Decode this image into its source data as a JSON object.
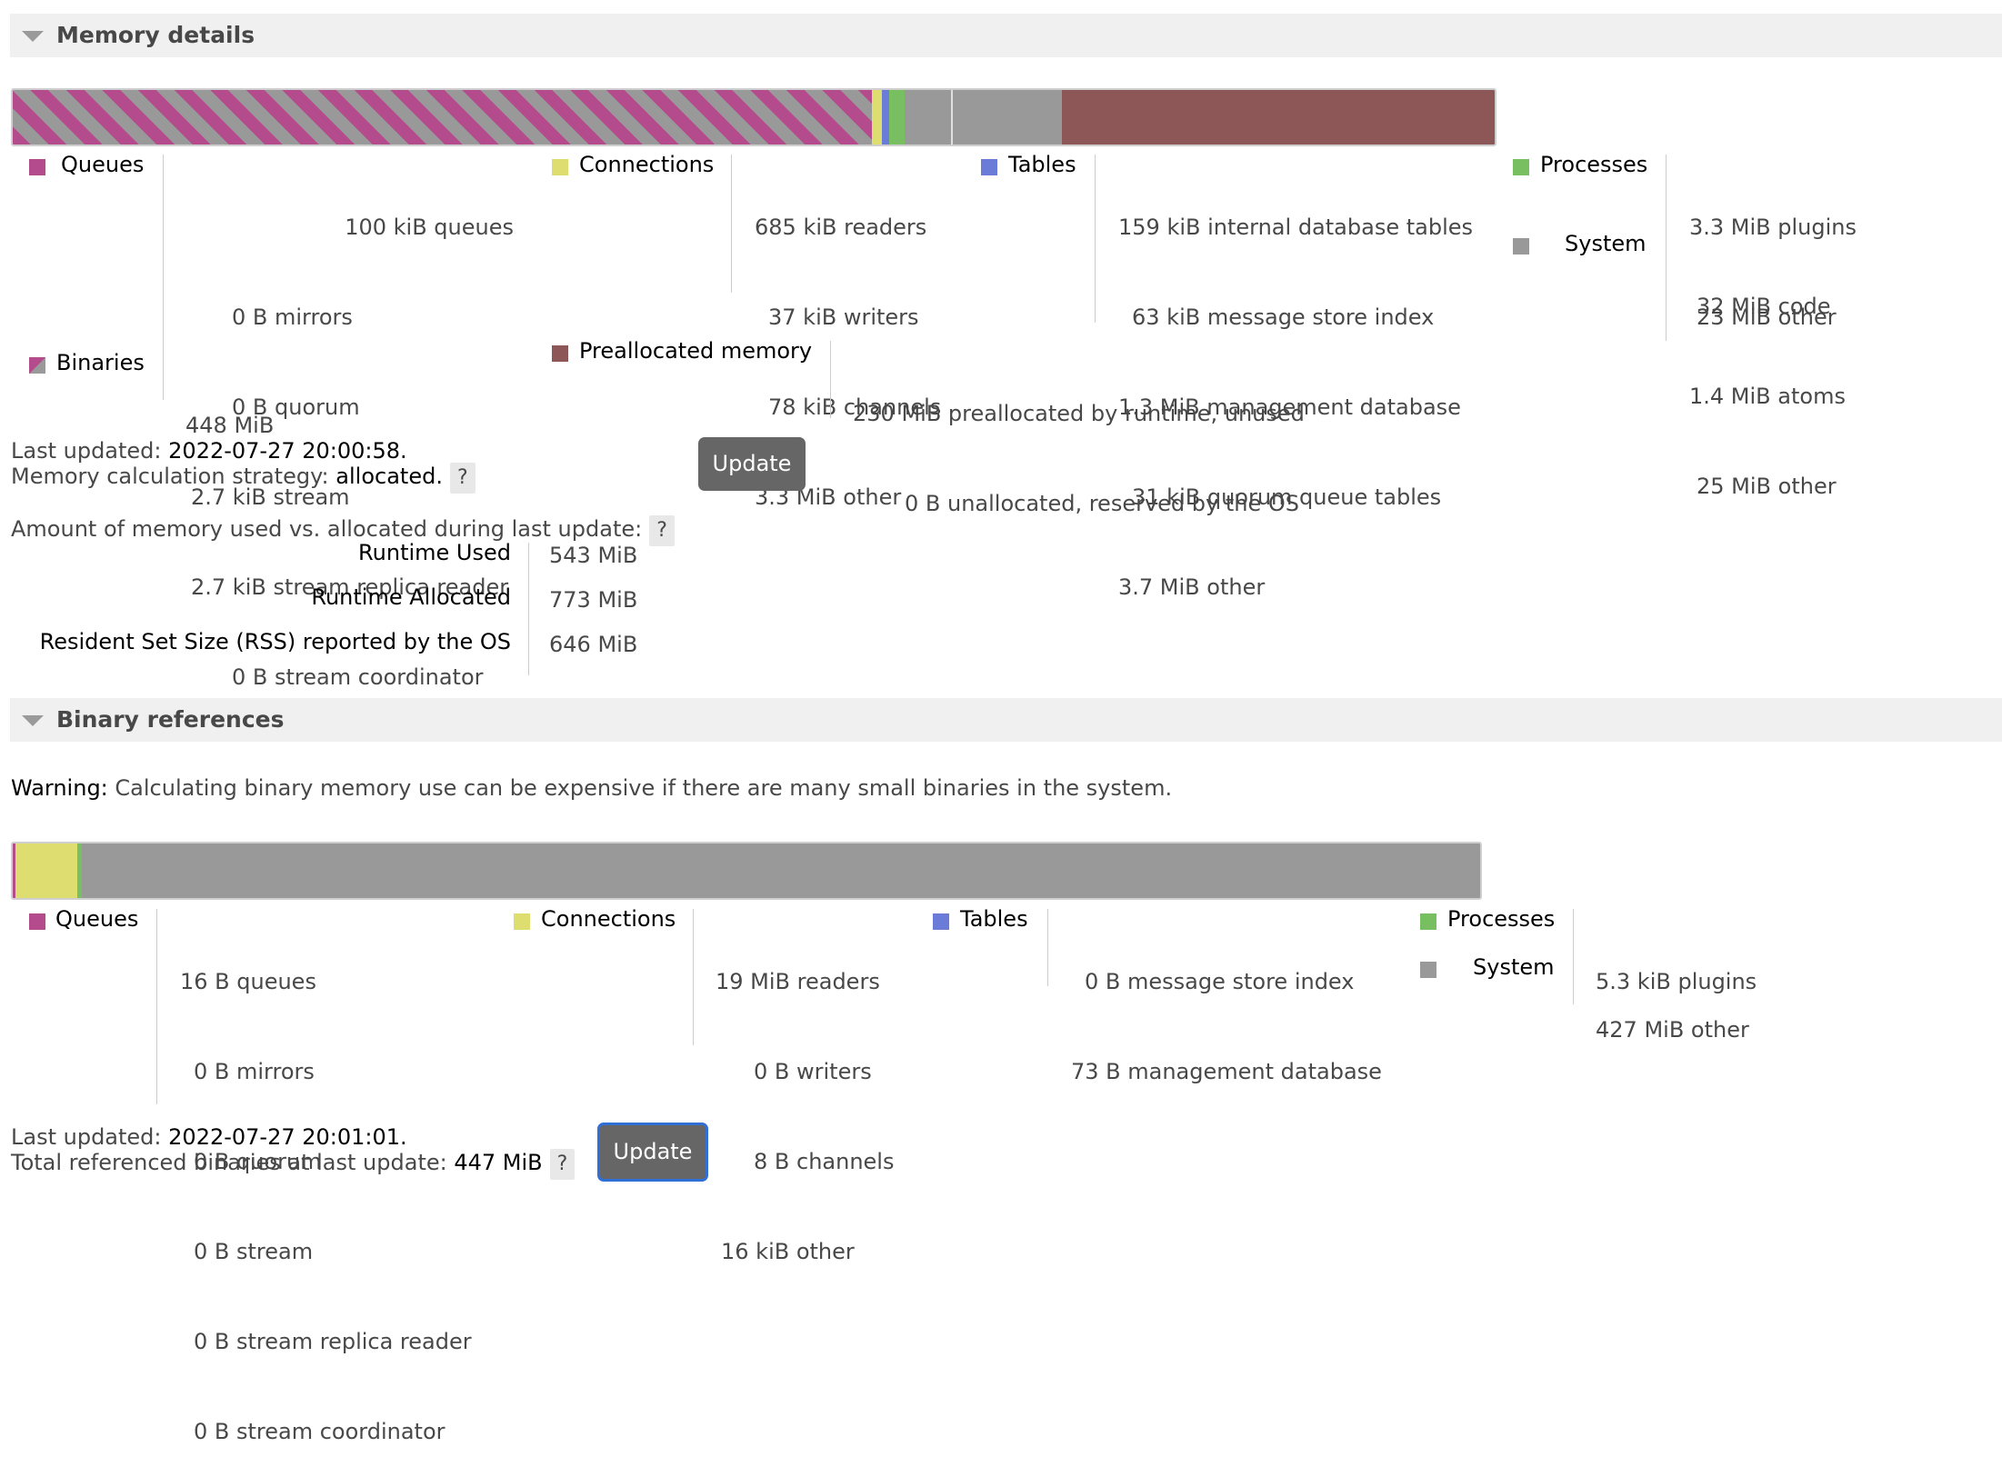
{
  "memory": {
    "title": "Memory details",
    "bar": {
      "total_mib": 773,
      "values_mib": [
        448,
        5.5,
        3.6,
        8.3,
        25,
        57,
        230
      ]
    },
    "queues": {
      "label": "Queues",
      "lines": [
        "100 kiB queues",
        "0 B mirrors",
        "0 B quorum",
        "2.7 kiB stream",
        "2.7 kiB stream replica reader",
        "0 B stream coordinator"
      ]
    },
    "binaries": {
      "label": "Binaries",
      "lines": [
        "448 MiB"
      ]
    },
    "connections": {
      "label": "Connections",
      "lines": [
        "685 kiB readers",
        "37 kiB writers",
        "78 kiB channels",
        "3.3 MiB other"
      ]
    },
    "preallocated": {
      "label": "Preallocated memory",
      "lines": [
        "230 MiB preallocated by runtime, unused",
        "0 B unallocated, reserved by the OS"
      ]
    },
    "tables": {
      "label": "Tables",
      "lines": [
        "159 kiB internal database tables",
        "63 kiB message store index",
        "1.3 MiB management database",
        "31 kiB quorum queue tables",
        "3.7 MiB other"
      ]
    },
    "processes": {
      "label": "Processes",
      "lines": [
        "3.3 MiB plugins",
        "23 MiB other"
      ]
    },
    "system": {
      "label": "System",
      "lines": [
        "32 MiB code",
        "1.4 MiB atoms",
        "25 MiB other"
      ]
    },
    "last_updated_label": "Last updated:",
    "last_updated_value": "2022-07-27 20:00:58.",
    "strategy_label": "Memory calculation strategy:",
    "strategy_value": "allocated.",
    "help": "?",
    "update_label": "Update",
    "amount_label": "Amount of memory used vs. allocated during last update:",
    "runtime_rows": [
      {
        "label": "Runtime Used",
        "value": "543 MiB"
      },
      {
        "label": "Runtime Allocated",
        "value": "773 MiB"
      },
      {
        "label": "Resident Set Size (RSS) reported by the OS",
        "value": "646 MiB"
      }
    ]
  },
  "binary": {
    "title": "Binary references",
    "warning_label": "Warning:",
    "warning_text": "Calculating binary memory use can be expensive if there are many small binaries in the system.",
    "bar": {
      "total_mib": 447,
      "values_mib": [
        0.8,
        19,
        1.2,
        426
      ]
    },
    "queues": {
      "label": "Queues",
      "lines": [
        "16 B queues",
        "0 B mirrors",
        "0 B quorum",
        "0 B stream",
        "0 B stream replica reader",
        "0 B stream coordinator"
      ]
    },
    "connections": {
      "label": "Connections",
      "lines": [
        "19 MiB readers",
        "0 B writers",
        "8 B channels",
        "16 kiB other"
      ]
    },
    "tables": {
      "label": "Tables",
      "lines": [
        "0 B message store index",
        "73 B management database"
      ]
    },
    "processes": {
      "label": "Processes",
      "lines": [
        "5.3 kiB plugins"
      ]
    },
    "system": {
      "label": "System",
      "lines": [
        "427 MiB other"
      ]
    },
    "last_updated_label": "Last updated:",
    "last_updated_value": "2022-07-27 20:01:01.",
    "total_label": "Total referenced binaries at last update:",
    "total_value": "447 MiB",
    "help": "?",
    "update_label": "Update"
  },
  "colors": {
    "queues": "#b44b8c",
    "connections": "#dedd6f",
    "tables": "#6b7bd8",
    "processes": "#78bf61",
    "system": "#999999",
    "preallocated": "#8e5757"
  }
}
